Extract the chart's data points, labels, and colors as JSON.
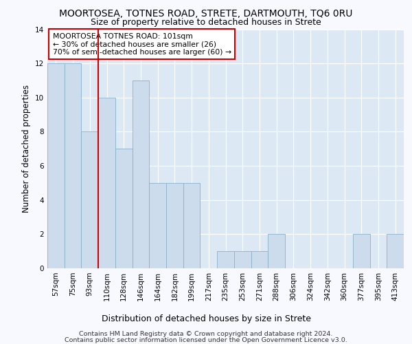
{
  "title": "MOORTOSEA, TOTNES ROAD, STRETE, DARTMOUTH, TQ6 0RU",
  "subtitle": "Size of property relative to detached houses in Strete",
  "xlabel": "Distribution of detached houses by size in Strete",
  "ylabel": "Number of detached properties",
  "bins": [
    "57sqm",
    "75sqm",
    "93sqm",
    "110sqm",
    "128sqm",
    "146sqm",
    "164sqm",
    "182sqm",
    "199sqm",
    "217sqm",
    "235sqm",
    "253sqm",
    "271sqm",
    "288sqm",
    "306sqm",
    "324sqm",
    "342sqm",
    "360sqm",
    "377sqm",
    "395sqm",
    "413sqm"
  ],
  "values": [
    12,
    12,
    8,
    10,
    7,
    11,
    5,
    5,
    5,
    0,
    1,
    1,
    1,
    2,
    0,
    0,
    0,
    0,
    2,
    0,
    2
  ],
  "bar_color": "#ccdcec",
  "bar_edge_color": "#8ab0cc",
  "vline_x_index": 2.5,
  "vline_color": "#cc0000",
  "annotation_box_color": "#ffffff",
  "annotation_box_edge_color": "#cc0000",
  "annotation_line1": "MOORTOSEA TOTNES ROAD: 101sqm",
  "annotation_line2": "← 30% of detached houses are smaller (26)",
  "annotation_line3": "70% of semi-detached houses are larger (60) →",
  "ylim": [
    0,
    14
  ],
  "yticks": [
    0,
    2,
    4,
    6,
    8,
    10,
    12,
    14
  ],
  "footer_line1": "Contains HM Land Registry data © Crown copyright and database right 2024.",
  "footer_line2": "Contains public sector information licensed under the Open Government Licence v3.0.",
  "bg_color": "#f8f8ff",
  "plot_bg_color": "#dce8f4",
  "grid_color": "#ffffff",
  "title_fontsize": 10,
  "subtitle_fontsize": 9,
  "ylabel_fontsize": 8.5,
  "xlabel_fontsize": 9,
  "tick_fontsize": 7.5,
  "footer_fontsize": 6.8
}
